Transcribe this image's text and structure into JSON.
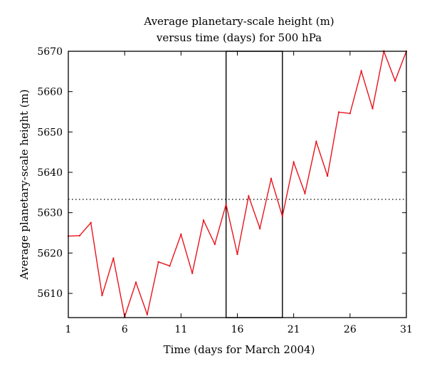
{
  "chart_data": {
    "type": "line",
    "title_lines": [
      "Average planetary-scale height (m)",
      "versus time (days) for 500 hPa"
    ],
    "xlabel": "Time (days for March 2004)",
    "ylabel": "Average planetary-scale height (m)",
    "xlim": [
      1,
      31
    ],
    "ylim": [
      5604,
      5670
    ],
    "x_ticks": [
      1,
      6,
      11,
      16,
      21,
      26,
      31
    ],
    "y_ticks": [
      5610,
      5620,
      5630,
      5640,
      5650,
      5660,
      5670
    ],
    "grid": false,
    "series": [
      {
        "color": "#e8141c",
        "x": [
          1,
          2,
          3,
          4,
          5,
          6,
          7,
          8,
          9,
          10,
          11,
          12,
          13,
          14,
          15,
          16,
          17,
          18,
          19,
          20,
          21,
          22,
          23,
          24,
          25,
          26,
          27,
          28,
          29,
          30,
          31
        ],
        "y": [
          5624.2,
          5624.3,
          5627.5,
          5609.5,
          5618.7,
          5604.2,
          5612.7,
          5604.8,
          5617.8,
          5616.8,
          5624.6,
          5615.0,
          5628.1,
          5622.2,
          5632.1,
          5619.7,
          5634.1,
          5626.1,
          5638.4,
          5629.1,
          5642.5,
          5634.8,
          5647.6,
          5639.1,
          5654.9,
          5654.6,
          5665.1,
          5655.8,
          5670.0,
          5662.7,
          5670.0
        ]
      }
    ],
    "reference_line": {
      "y": 5633.3,
      "style": "dotted",
      "color": "#000000"
    },
    "highlight_box": {
      "x_start": 15,
      "x_end": 20,
      "color": "#000000"
    }
  }
}
